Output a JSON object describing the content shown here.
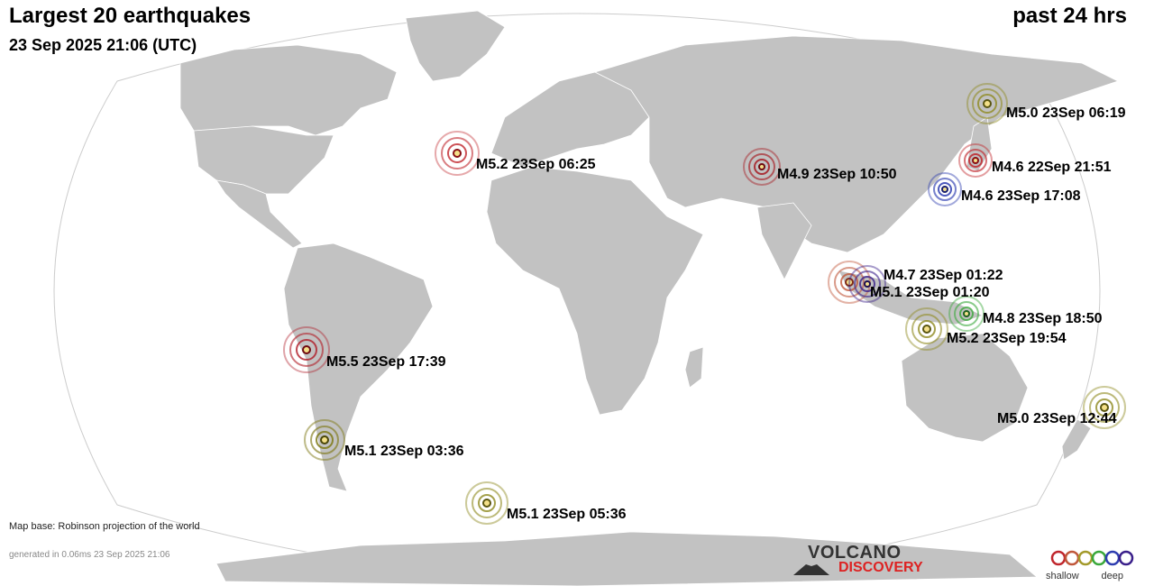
{
  "header": {
    "title": "Largest 20 earthquakes",
    "timestamp": "23 Sep 2025 21:06 (UTC)",
    "period": "past 24 hrs"
  },
  "colors": {
    "ocean": "#ffffff",
    "land": "#c2c2c2",
    "border": "#ffffff",
    "shallow": "#c0272d",
    "mid_shallow": "#c0573a",
    "intermediate": "#a39a2a",
    "mid": "#39a83a",
    "deep_mid": "#2e3db0",
    "deep": "#3a1f8a"
  },
  "earthquakes": [
    {
      "label": "M5.0 23Sep 06:19",
      "color": "#8f8a20"
    },
    {
      "label": "M5.2 23Sep 06:25",
      "color": "#c0272d"
    },
    {
      "label": "M4.9 23Sep 10:50",
      "color": "#a61a22"
    },
    {
      "label": "M4.6 22Sep 21:51",
      "color": "#c0272d"
    },
    {
      "label": "M4.6 23Sep 17:08",
      "color": "#2e3db0"
    },
    {
      "label": "M4.7 23Sep 01:22",
      "color": "#c0573a"
    },
    {
      "label": "M5.1 23Sep 01:20",
      "color": "#3a1f8a"
    },
    {
      "label": "M4.8 23Sep 18:50",
      "color": "#39a83a"
    },
    {
      "label": "M5.2 23Sep 19:54",
      "color": "#8f8a20"
    },
    {
      "label": "M5.5 23Sep 17:39",
      "color": "#b01a25"
    },
    {
      "label": "M5.0 23Sep 12:44",
      "color": "#8f8a20"
    },
    {
      "label": "M5.1 23Sep 03:36",
      "color": "#7f7a18"
    },
    {
      "label": "M5.1 23Sep 05:36",
      "color": "#8f8a20"
    }
  ],
  "footer": {
    "map_base": "Map base: Robinson projection of the world",
    "generated": "generated in 0.06ms 23 Sep 2025 21:06"
  },
  "logo": {
    "line1": "VOLCANO",
    "line2": "DISCOVERY"
  },
  "legend": {
    "shallow_label": "shallow",
    "deep_label": "deep",
    "depth_colors": [
      "#c0272d",
      "#c0573a",
      "#a39a2a",
      "#39a83a",
      "#2e3db0",
      "#3a1f8a"
    ]
  }
}
